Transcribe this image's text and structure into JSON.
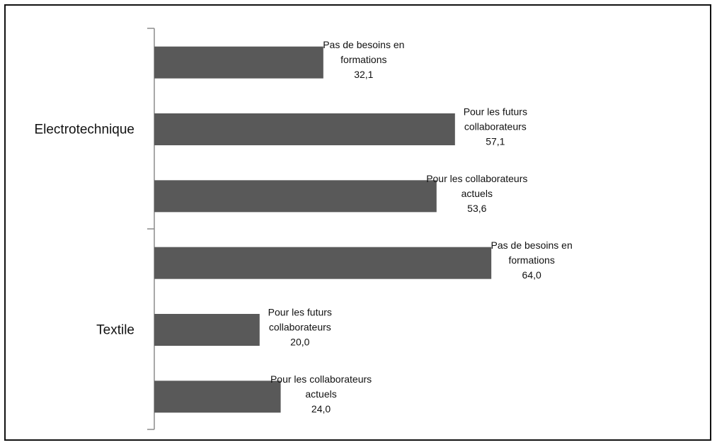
{
  "chart_data": {
    "type": "bar",
    "orientation": "horizontal",
    "title": "",
    "xlabel": "",
    "ylabel": "",
    "xlim": [
      0,
      100
    ],
    "grid": false,
    "legend": "none",
    "bar_color": "#595959",
    "groups": [
      {
        "name": "Electrotechnique",
        "bars": [
          {
            "label_lines": [
              "Pas de besoins en",
              "formations"
            ],
            "value": 32.1,
            "value_text": "32,1"
          },
          {
            "label_lines": [
              "Pour les futurs",
              "collaborateurs"
            ],
            "value": 57.1,
            "value_text": "57,1"
          },
          {
            "label_lines": [
              "Pour les collaborateurs",
              "actuels"
            ],
            "value": 53.6,
            "value_text": "53,6"
          }
        ]
      },
      {
        "name": "Textile",
        "bars": [
          {
            "label_lines": [
              "Pas de besoins en",
              "formations"
            ],
            "value": 64.0,
            "value_text": "64,0"
          },
          {
            "label_lines": [
              "Pour les futurs",
              "collaborateurs"
            ],
            "value": 20.0,
            "value_text": "20,0"
          },
          {
            "label_lines": [
              "Pour les collaborateurs",
              "actuels"
            ],
            "value": 24.0,
            "value_text": "24,0"
          }
        ]
      }
    ]
  }
}
